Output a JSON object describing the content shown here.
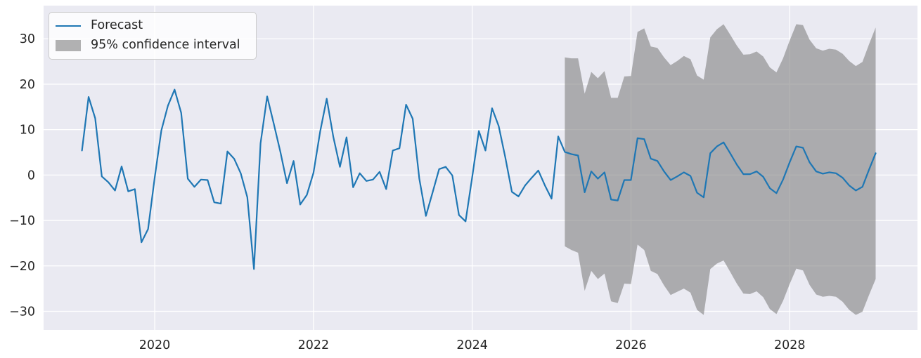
{
  "figure": {
    "background": "#ffffff",
    "plot_background": "#eaeaf2",
    "grid_color": "#ffffff",
    "tick_label_color": "#262626"
  },
  "legend": {
    "position": "upper left",
    "items": [
      {
        "label": "Forecast",
        "type": "line",
        "color": "#1f77b4"
      },
      {
        "label": "95% confidence interval",
        "type": "patch",
        "color": "#808080",
        "alpha": 0.6
      }
    ]
  },
  "chart_data": {
    "type": "line",
    "title": "",
    "xlabel": "",
    "ylabel": "",
    "grid": true,
    "legend_position": "upper left",
    "x_axis": {
      "ticks": [
        2020,
        2022,
        2024,
        2026,
        2028
      ],
      "tick_labels": [
        "2020",
        "2022",
        "2024",
        "2026",
        "2028"
      ],
      "range": [
        2018.6,
        2029.61
      ]
    },
    "y_axis": {
      "ticks": [
        -30,
        -20,
        -10,
        0,
        10,
        20,
        30
      ],
      "tick_labels": [
        "−30",
        "−20",
        "−10",
        "0",
        "10",
        "20",
        "30"
      ],
      "range": [
        -34.1,
        37.3
      ]
    },
    "series": [
      {
        "name": "Forecast",
        "color": "#1f77b4",
        "freq": "monthly",
        "start": "2019-02",
        "values": [
          5.4,
          17.2,
          12.5,
          -0.3,
          -1.6,
          -3.4,
          1.9,
          -3.6,
          -3.1,
          -14.8,
          -11.9,
          -0.5,
          9.8,
          15.3,
          18.8,
          13.7,
          -0.8,
          -2.6,
          -1.0,
          -1.1,
          -6.0,
          -6.3,
          5.2,
          3.6,
          0.4,
          -4.9,
          -20.7,
          7.0,
          17.3,
          11.3,
          5.1,
          -1.8,
          3.1,
          -6.5,
          -4.4,
          0.5,
          9.5,
          16.8,
          8.4,
          1.8,
          8.3,
          -2.7,
          0.4,
          -1.3,
          -1.0,
          0.7,
          -3.1,
          5.4,
          5.9,
          15.5,
          12.4,
          -0.8,
          -9.0,
          -3.9,
          1.3,
          1.8,
          -0.1,
          -8.8,
          -10.2,
          -0.5,
          9.7,
          5.4,
          14.7,
          10.8,
          3.9,
          -3.7,
          -4.7,
          -2.3,
          -0.6,
          1.0,
          -2.3,
          -5.2,
          8.5,
          5.1,
          4.6,
          4.3,
          -3.8,
          0.8,
          -0.8,
          0.6,
          -5.4,
          -5.6,
          -1.1,
          -1.1,
          8.1,
          7.9,
          3.6,
          3.1,
          0.8,
          -1.1,
          -0.3,
          0.6,
          -0.2,
          -3.9,
          -4.9,
          4.8,
          6.3,
          7.2,
          4.8,
          2.3,
          0.2,
          0.2,
          0.8,
          -0.4,
          -2.9,
          -4.0,
          -1.0,
          2.8,
          6.3,
          6.0,
          2.8,
          0.8,
          0.3,
          0.6,
          0.4,
          -0.6,
          -2.3,
          -3.4,
          -2.6,
          1.2,
          4.8
        ]
      }
    ],
    "confidence_interval": {
      "name": "95% confidence interval",
      "start": "2025-03",
      "color": "#808080",
      "alpha": 0.6,
      "upper": [
        25.9,
        25.7,
        25.7,
        17.9,
        22.7,
        21.3,
        22.9,
        17.0,
        17.0,
        21.7,
        21.8,
        31.5,
        32.3,
        28.3,
        28.0,
        25.9,
        24.2,
        25.1,
        26.2,
        25.5,
        21.9,
        21.0,
        30.3,
        32.1,
        33.2,
        30.9,
        28.5,
        26.5,
        26.6,
        27.2,
        26.1,
        23.7,
        22.6,
        25.7,
        29.6,
        33.2,
        33.0,
        29.8,
        27.9,
        27.4,
        27.8,
        27.6,
        26.7,
        25.1,
        24.0,
        24.9,
        28.8,
        32.5
      ],
      "lower": [
        -15.7,
        -16.5,
        -17.1,
        -25.5,
        -21.1,
        -22.9,
        -21.7,
        -27.8,
        -28.2,
        -23.9,
        -24.0,
        -15.3,
        -16.5,
        -21.1,
        -21.8,
        -24.3,
        -26.4,
        -25.7,
        -25.0,
        -25.9,
        -29.7,
        -30.8,
        -20.7,
        -19.5,
        -18.8,
        -21.3,
        -23.9,
        -26.1,
        -26.2,
        -25.6,
        -26.9,
        -29.5,
        -30.6,
        -27.7,
        -24.0,
        -20.6,
        -21.0,
        -24.2,
        -26.3,
        -26.8,
        -26.6,
        -26.8,
        -27.9,
        -29.7,
        -30.8,
        -30.1,
        -26.4,
        -22.9
      ]
    }
  }
}
